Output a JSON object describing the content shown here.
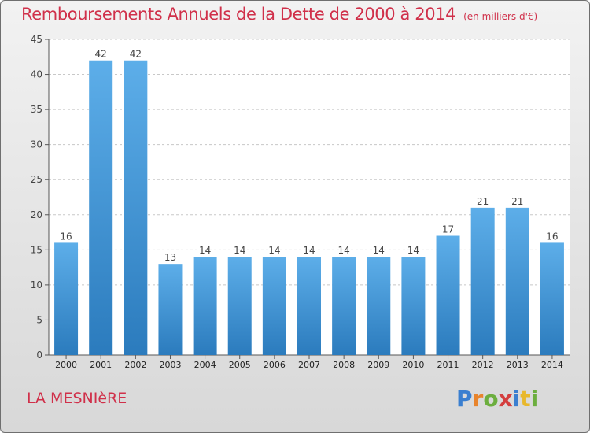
{
  "chart_data": {
    "type": "bar",
    "title": "Remboursements Annuels de la Dette de 2000 à 2014",
    "subtitle": "(en milliers d'€)",
    "categories": [
      "2000",
      "2001",
      "2002",
      "2003",
      "2004",
      "2005",
      "2006",
      "2007",
      "2008",
      "2009",
      "2010",
      "2011",
      "2012",
      "2013",
      "2014"
    ],
    "values": [
      16,
      42,
      42,
      13,
      14,
      14,
      14,
      14,
      14,
      14,
      14,
      17,
      21,
      21,
      16
    ],
    "ylim": [
      0,
      45
    ],
    "yticks": [
      0,
      5,
      10,
      15,
      20,
      25,
      30,
      35,
      40,
      45
    ],
    "grid": "horizontal-dashed",
    "bar_color_light": "#5daee9",
    "bar_color_dark": "#2b7bbd",
    "text_color": "#d0304a"
  },
  "footer": {
    "town": "LA MESNIèRE",
    "logo": "Proxiti"
  }
}
